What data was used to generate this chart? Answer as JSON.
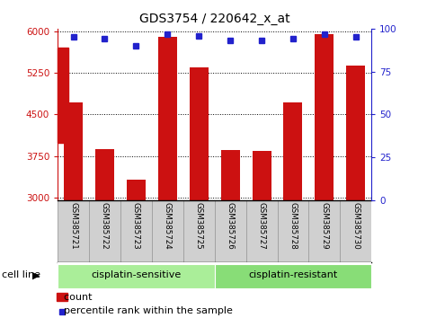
{
  "title": "GDS3754 / 220642_x_at",
  "samples": [
    "GSM385721",
    "GSM385722",
    "GSM385723",
    "GSM385724",
    "GSM385725",
    "GSM385726",
    "GSM385727",
    "GSM385728",
    "GSM385729",
    "GSM385730"
  ],
  "counts": [
    4720,
    3870,
    3330,
    5900,
    5350,
    3860,
    3840,
    4720,
    5950,
    5380
  ],
  "percentiles": [
    95,
    94,
    90,
    97,
    96,
    93,
    93,
    94,
    97,
    95
  ],
  "ylim_left": [
    2950,
    6050
  ],
  "ylim_right": [
    0,
    100
  ],
  "yticks_left": [
    3000,
    3750,
    4500,
    5250,
    6000
  ],
  "yticks_right": [
    0,
    25,
    50,
    75,
    100
  ],
  "bar_color": "#cc1111",
  "dot_color": "#2222cc",
  "background_color": "#ffffff",
  "group_sensitive_color": "#aaee99",
  "group_resistant_color": "#88dd77",
  "groups": [
    {
      "label": "cisplatin-sensitive",
      "start": 0,
      "end": 4
    },
    {
      "label": "cisplatin-resistant",
      "start": 5,
      "end": 9
    }
  ],
  "cell_line_label": "cell line",
  "legend_count_label": "count",
  "legend_pct_label": "percentile rank within the sample",
  "bar_width": 0.6
}
